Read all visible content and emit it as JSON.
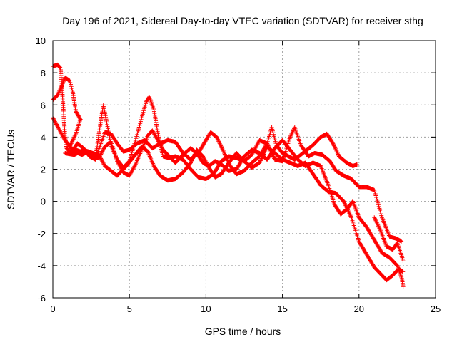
{
  "chart_data": {
    "type": "scatter",
    "title": "Day 196 of 2021, Sidereal Day-to-day VTEC variation (SDTVAR) for receiver sthg",
    "xlabel": "GPS time / hours",
    "ylabel": "SDTVAR / TECUs",
    "xlim": [
      0,
      25
    ],
    "ylim": [
      -6,
      10
    ],
    "xticks": [
      0,
      5,
      10,
      15,
      20,
      25
    ],
    "yticks": [
      -6,
      -4,
      -2,
      0,
      2,
      4,
      6,
      8,
      10
    ],
    "grid": true,
    "marker": "+",
    "color": "#ff0000",
    "series": [
      {
        "name": "track-1",
        "points": [
          [
            0,
            8.4
          ],
          [
            0.3,
            8.5
          ],
          [
            0.5,
            8.3
          ],
          [
            0.6,
            7.0
          ],
          [
            0.7,
            5.5
          ],
          [
            0.8,
            4.0
          ],
          [
            0.9,
            3.3
          ],
          [
            1.2,
            3.0
          ],
          [
            1.6,
            3.6
          ],
          [
            2.0,
            3.3
          ],
          [
            2.4,
            2.8
          ],
          [
            2.8,
            2.6
          ],
          [
            3.1,
            3.5
          ],
          [
            3.4,
            4.3
          ],
          [
            3.8,
            4.2
          ],
          [
            4.2,
            3.6
          ],
          [
            4.6,
            3.1
          ],
          [
            5.0,
            3.2
          ],
          [
            5.5,
            3.6
          ],
          [
            6.0,
            3.8
          ],
          [
            6.5,
            3.3
          ],
          [
            7.0,
            3.6
          ],
          [
            7.5,
            3.8
          ],
          [
            8.0,
            3.7
          ],
          [
            8.5,
            3.0
          ],
          [
            9.0,
            2.6
          ],
          [
            9.5,
            3.0
          ],
          [
            10.0,
            3.8
          ],
          [
            10.3,
            4.3
          ],
          [
            10.7,
            4.0
          ],
          [
            11.2,
            3.0
          ],
          [
            11.6,
            2.2
          ],
          [
            12.0,
            1.7
          ],
          [
            12.5,
            1.9
          ],
          [
            13.0,
            2.4
          ],
          [
            13.5,
            2.8
          ],
          [
            14.0,
            3.6
          ],
          [
            14.3,
            4.6
          ],
          [
            14.6,
            3.5
          ],
          [
            15.0,
            3.0
          ],
          [
            15.4,
            2.8
          ],
          [
            15.8,
            2.6
          ],
          [
            16.2,
            2.9
          ],
          [
            16.6,
            3.2
          ],
          [
            17.0,
            3.5
          ],
          [
            17.5,
            4.0
          ],
          [
            17.9,
            4.2
          ],
          [
            18.3,
            3.6
          ],
          [
            18.7,
            2.8
          ],
          [
            19.2,
            2.4
          ],
          [
            19.6,
            2.2
          ],
          [
            19.9,
            2.3
          ]
        ]
      },
      {
        "name": "track-2",
        "points": [
          [
            0,
            6.3
          ],
          [
            0.3,
            6.6
          ],
          [
            0.5,
            7.0
          ],
          [
            0.8,
            7.7
          ],
          [
            1.1,
            7.5
          ],
          [
            1.3,
            6.8
          ],
          [
            1.5,
            5.6
          ],
          [
            1.8,
            5.1
          ],
          [
            1.5,
            4.2
          ],
          [
            1.1,
            3.4
          ],
          [
            1.4,
            3.1
          ],
          [
            1.9,
            2.9
          ],
          [
            2.3,
            3.1
          ],
          [
            2.8,
            2.8
          ],
          [
            3.1,
            4.8
          ],
          [
            3.3,
            6.0
          ],
          [
            3.5,
            5.0
          ],
          [
            3.8,
            3.5
          ],
          [
            4.2,
            2.6
          ],
          [
            4.6,
            2.1
          ],
          [
            5.0,
            2.5
          ],
          [
            5.4,
            3.8
          ],
          [
            5.8,
            5.2
          ],
          [
            6.1,
            6.2
          ],
          [
            6.3,
            6.5
          ],
          [
            6.6,
            5.7
          ],
          [
            6.9,
            4.0
          ],
          [
            7.2,
            2.8
          ],
          [
            7.6,
            2.7
          ],
          [
            8.0,
            2.8
          ],
          [
            8.5,
            2.6
          ],
          [
            9.0,
            2.0
          ],
          [
            9.5,
            1.5
          ],
          [
            10.0,
            1.4
          ],
          [
            10.5,
            1.7
          ],
          [
            11.0,
            2.5
          ],
          [
            11.5,
            2.8
          ],
          [
            12.0,
            2.7
          ],
          [
            12.5,
            2.5
          ],
          [
            13.0,
            2.9
          ],
          [
            13.5,
            3.8
          ],
          [
            14.0,
            3.6
          ],
          [
            14.5,
            2.6
          ],
          [
            15.0,
            2.5
          ],
          [
            15.5,
            4.0
          ],
          [
            15.8,
            4.6
          ],
          [
            16.2,
            3.5
          ],
          [
            16.7,
            2.8
          ],
          [
            17.1,
            3.0
          ],
          [
            17.6,
            2.9
          ],
          [
            18.1,
            2.5
          ],
          [
            18.5,
            1.9
          ],
          [
            19.0,
            1.6
          ],
          [
            19.5,
            1.4
          ],
          [
            20.0,
            0.9
          ],
          [
            20.5,
            0.9
          ],
          [
            21.0,
            0.7
          ],
          [
            21.5,
            -1.0
          ],
          [
            22.0,
            -2.2
          ],
          [
            22.4,
            -2.3
          ],
          [
            22.8,
            -2.5
          ]
        ]
      },
      {
        "name": "track-3",
        "points": [
          [
            0,
            5.2
          ],
          [
            0.4,
            4.5
          ],
          [
            0.8,
            3.8
          ],
          [
            1.2,
            3.3
          ],
          [
            1.8,
            3.1
          ],
          [
            2.4,
            3.0
          ],
          [
            3.0,
            2.7
          ],
          [
            3.4,
            3.4
          ],
          [
            3.8,
            3.7
          ],
          [
            4.2,
            2.5
          ],
          [
            4.6,
            1.8
          ],
          [
            5.0,
            1.6
          ],
          [
            5.4,
            2.3
          ],
          [
            5.8,
            3.2
          ],
          [
            6.2,
            4.1
          ],
          [
            6.5,
            4.4
          ],
          [
            6.8,
            3.9
          ],
          [
            7.2,
            3.2
          ],
          [
            7.6,
            2.8
          ],
          [
            8.0,
            2.4
          ],
          [
            8.5,
            2.9
          ],
          [
            9.0,
            3.3
          ],
          [
            9.4,
            3.0
          ],
          [
            9.8,
            2.4
          ],
          [
            10.2,
            2.2
          ],
          [
            10.6,
            2.5
          ],
          [
            11.0,
            2.3
          ],
          [
            11.5,
            1.9
          ],
          [
            12.0,
            2.0
          ],
          [
            12.5,
            2.8
          ],
          [
            13.0,
            3.2
          ],
          [
            13.5,
            3.0
          ],
          [
            14.0,
            2.6
          ],
          [
            14.5,
            3.3
          ],
          [
            15.0,
            3.8
          ],
          [
            15.5,
            3.2
          ],
          [
            16.0,
            2.6
          ],
          [
            16.5,
            2.2
          ],
          [
            17.0,
            2.4
          ],
          [
            17.5,
            2.2
          ],
          [
            18.0,
            1.0
          ],
          [
            18.4,
            -0.2
          ],
          [
            18.8,
            -0.8
          ],
          [
            19.2,
            -0.5
          ],
          [
            19.6,
            0.0
          ],
          [
            20.0,
            -1.0
          ],
          [
            20.5,
            -1.6
          ],
          [
            21.0,
            -2.4
          ],
          [
            21.5,
            -3.2
          ],
          [
            22.0,
            -3.5
          ],
          [
            22.5,
            -4.0
          ],
          [
            22.8,
            -4.8
          ],
          [
            22.9,
            -5.4
          ]
        ]
      },
      {
        "name": "track-4",
        "points": [
          [
            0.8,
            3.0
          ],
          [
            1.4,
            2.9
          ],
          [
            2.0,
            3.2
          ],
          [
            2.6,
            3.0
          ],
          [
            3.0,
            2.9
          ],
          [
            3.4,
            2.2
          ],
          [
            3.8,
            1.9
          ],
          [
            4.2,
            1.6
          ],
          [
            4.8,
            2.2
          ],
          [
            5.3,
            2.8
          ],
          [
            5.8,
            3.4
          ],
          [
            6.2,
            3.1
          ],
          [
            6.6,
            2.2
          ],
          [
            7.0,
            1.6
          ],
          [
            7.5,
            1.3
          ],
          [
            8.0,
            1.4
          ],
          [
            8.5,
            1.8
          ],
          [
            9.0,
            2.4
          ],
          [
            9.4,
            3.2
          ],
          [
            9.8,
            2.8
          ],
          [
            10.2,
            2.1
          ],
          [
            10.6,
            1.5
          ],
          [
            11.0,
            1.7
          ],
          [
            11.5,
            2.4
          ],
          [
            12.0,
            3.0
          ],
          [
            12.5,
            2.5
          ],
          [
            13.0,
            2.1
          ],
          [
            13.5,
            2.4
          ],
          [
            14.0,
            3.4
          ],
          [
            14.5,
            3.0
          ],
          [
            15.0,
            2.6
          ],
          [
            15.5,
            2.4
          ],
          [
            16.0,
            2.2
          ],
          [
            16.5,
            2.4
          ],
          [
            17.0,
            1.7
          ],
          [
            17.5,
            1.0
          ],
          [
            18.0,
            0.6
          ],
          [
            18.5,
            0.5
          ],
          [
            19.0,
            0.0
          ],
          [
            19.5,
            -1.0
          ],
          [
            20.0,
            -2.5
          ],
          [
            20.5,
            -3.3
          ],
          [
            21.0,
            -4.1
          ],
          [
            21.5,
            -4.6
          ],
          [
            21.8,
            -4.9
          ],
          [
            22.2,
            -4.6
          ],
          [
            22.6,
            -4.2
          ],
          [
            22.9,
            -4.4
          ]
        ]
      },
      {
        "name": "track-5",
        "points": [
          [
            21.0,
            -1.0
          ],
          [
            21.4,
            -1.8
          ],
          [
            21.8,
            -2.8
          ],
          [
            22.2,
            -3.0
          ],
          [
            22.5,
            -2.6
          ],
          [
            22.8,
            -3.4
          ],
          [
            22.9,
            -3.8
          ]
        ]
      }
    ]
  }
}
